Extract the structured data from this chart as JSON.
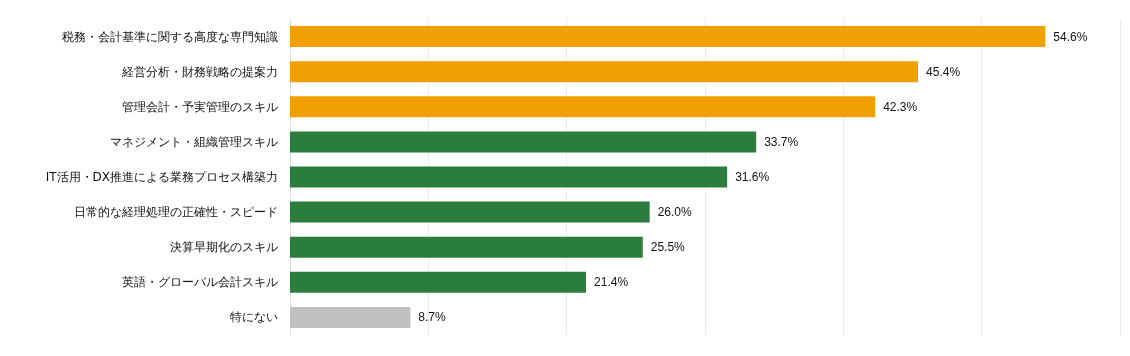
{
  "chart_data": {
    "type": "bar",
    "orientation": "horizontal",
    "categories": [
      "税務・会計基準に関する高度な専門知識",
      "経営分析・財務戦略の提案力",
      "管理会計・予実管理のスキル",
      "マネジメント・組織管理スキル",
      "IT活用・DX推進による業務プロセス構築力",
      "日常的な経理処理の正確性・スピード",
      "決算早期化のスキル",
      "英語・グローバル会計スキル",
      "特にない"
    ],
    "values": [
      54.6,
      45.4,
      42.3,
      33.7,
      31.6,
      26.0,
      25.5,
      21.4,
      8.7
    ],
    "colors": [
      "#f0a000",
      "#f0a000",
      "#f0a000",
      "#2a7d3c",
      "#2a7d3c",
      "#2a7d3c",
      "#2a7d3c",
      "#2a7d3c",
      "#c0c0c0"
    ],
    "value_labels": [
      "54.6%",
      "45.4%",
      "42.3%",
      "33.7%",
      "31.6%",
      "26.0%",
      "25.5%",
      "21.4%",
      "8.7%"
    ],
    "xlim": [
      0,
      60
    ],
    "xticks": [
      {
        "value": 0,
        "label": null
      },
      {
        "value": 10,
        "label": null
      },
      {
        "value": 20,
        "label": null
      },
      {
        "value": 30,
        "label": null
      },
      {
        "value": 40,
        "label": null
      },
      {
        "value": 50,
        "label": null
      },
      {
        "value": 60,
        "label": null
      }
    ],
    "grid": "x",
    "tick_labels": "y"
  }
}
